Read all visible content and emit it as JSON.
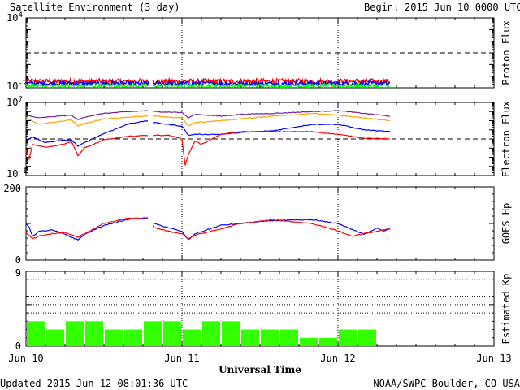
{
  "chart_data": {
    "type": "line",
    "title": "Satellite Environment (3 day)",
    "begin_label": "Begin:",
    "begin_value": "2015 Jun 10 0000 UTC",
    "xlabel": "Universal Time",
    "x_ticks": [
      "Jun 10",
      "Jun 11",
      "Jun 12",
      "Jun 13"
    ],
    "x_range_hours": [
      0,
      72
    ],
    "data_end_hour": 56,
    "footer_left": "Updated 2015 Jun 12 08:01:36 UTC",
    "footer_right": "NOAA/SWPC Boulder, CO USA",
    "panels": [
      {
        "name": "proton",
        "ylabel": "Proton Flux",
        "scale": "log",
        "ylim_exp": [
          -2,
          4
        ],
        "tick_labels": [
          {
            "base": "10",
            "exp": "4",
            "value": 4
          },
          {
            "base": "10",
            "exp": "-2",
            "value": -2
          }
        ],
        "threshold": 1,
        "gap_hours": [
          18.9,
          19.5
        ],
        "series": [
          {
            "color": "#ff0000",
            "level": -1.45,
            "noise": 0.22
          },
          {
            "color": "#0000ff",
            "level": -1.63,
            "noise": 0.18
          },
          {
            "color": "#00ff00",
            "level": -1.82,
            "noise": 0.14
          }
        ]
      },
      {
        "name": "electron",
        "ylabel": "Electron Flux",
        "scale": "log",
        "ylim_exp": [
          -1,
          7
        ],
        "tick_labels": [
          {
            "base": "10",
            "exp": "7",
            "value": 7
          },
          {
            "base": "10",
            "exp": "-1",
            "value": -1
          }
        ],
        "threshold": 3,
        "gap_hours": [
          18.9,
          19.5
        ],
        "series": [
          {
            "color": "#7020a0",
            "points": [
              [
                0,
                5.6
              ],
              [
                2,
                5.3
              ],
              [
                5,
                5.5
              ],
              [
                7,
                5.6
              ],
              [
                8,
                5.1
              ],
              [
                9,
                5.4
              ],
              [
                12,
                5.8
              ],
              [
                16,
                6.0
              ],
              [
                18.8,
                6.1
              ],
              [
                19.6,
                6.0
              ],
              [
                24,
                5.9
              ],
              [
                25,
                5.3
              ],
              [
                26,
                5.7
              ],
              [
                30,
                5.5
              ],
              [
                33,
                5.7
              ],
              [
                38,
                5.8
              ],
              [
                44,
                6.0
              ],
              [
                48,
                6.1
              ],
              [
                52,
                5.8
              ],
              [
                56,
                5.5
              ]
            ]
          },
          {
            "color": "#ffa000",
            "points": [
              [
                0,
                5.3
              ],
              [
                2,
                4.6
              ],
              [
                5,
                4.9
              ],
              [
                7,
                5.1
              ],
              [
                8,
                4.4
              ],
              [
                9,
                4.7
              ],
              [
                12,
                5.2
              ],
              [
                16,
                5.4
              ],
              [
                18.8,
                5.5
              ],
              [
                19.6,
                5.5
              ],
              [
                24,
                5.3
              ],
              [
                25,
                4.4
              ],
              [
                26,
                4.8
              ],
              [
                30,
                5.0
              ],
              [
                33,
                5.2
              ],
              [
                38,
                5.5
              ],
              [
                44,
                5.8
              ],
              [
                48,
                5.6
              ],
              [
                52,
                5.3
              ],
              [
                56,
                5.0
              ]
            ]
          },
          {
            "color": "#0000ff",
            "points": [
              [
                0,
                2.8
              ],
              [
                1,
                3.2
              ],
              [
                3,
                2.6
              ],
              [
                5,
                2.8
              ],
              [
                7,
                2.9
              ],
              [
                8,
                2.2
              ],
              [
                9,
                2.6
              ],
              [
                12,
                3.6
              ],
              [
                16,
                4.7
              ],
              [
                18.8,
                5.0
              ],
              [
                19.6,
                4.8
              ],
              [
                24,
                4.4
              ],
              [
                25,
                3.4
              ],
              [
                26,
                3.5
              ],
              [
                30,
                3.5
              ],
              [
                33,
                3.7
              ],
              [
                38,
                3.9
              ],
              [
                44,
                4.6
              ],
              [
                48,
                4.6
              ],
              [
                52,
                4.0
              ],
              [
                56,
                3.8
              ]
            ]
          },
          {
            "color": "#ff0000",
            "points": [
              [
                0,
                1.8
              ],
              [
                0.5,
                0.8
              ],
              [
                1,
                2.4
              ],
              [
                3,
                2.1
              ],
              [
                5,
                2.3
              ],
              [
                7,
                2.7
              ],
              [
                8,
                1.2
              ],
              [
                9,
                2.0
              ],
              [
                12,
                2.9
              ],
              [
                16,
                3.3
              ],
              [
                18.8,
                3.4
              ],
              [
                19.6,
                3.4
              ],
              [
                22,
                3.4
              ],
              [
                24,
                3.0
              ],
              [
                24.5,
                0.1
              ],
              [
                25,
                1.3
              ],
              [
                26,
                2.8
              ],
              [
                27,
                2.4
              ],
              [
                30,
                3.5
              ],
              [
                33,
                3.8
              ],
              [
                38,
                3.8
              ],
              [
                44,
                3.8
              ],
              [
                48,
                3.5
              ],
              [
                52,
                3.1
              ],
              [
                56,
                3.0
              ]
            ]
          }
        ]
      },
      {
        "name": "hp",
        "ylabel": "GOES Hp",
        "scale": "linear",
        "ylim": [
          0,
          200
        ],
        "tick_labels": [
          {
            "text": "200",
            "value": 200
          },
          {
            "text": "0",
            "value": 0
          }
        ],
        "gap_hours": [
          18.9,
          19.5
        ],
        "series": [
          {
            "color": "#0000ff",
            "points": [
              [
                0,
                100
              ],
              [
                0.5,
                90
              ],
              [
                1,
                65
              ],
              [
                2,
                78
              ],
              [
                4,
                82
              ],
              [
                6,
                70
              ],
              [
                8,
                55
              ],
              [
                9,
                70
              ],
              [
                12,
                95
              ],
              [
                16,
                112
              ],
              [
                18.8,
                115
              ],
              [
                19.6,
                100
              ],
              [
                22,
                88
              ],
              [
                24,
                78
              ],
              [
                25,
                55
              ],
              [
                26,
                72
              ],
              [
                30,
                95
              ],
              [
                33,
                100
              ],
              [
                38,
                108
              ],
              [
                44,
                110
              ],
              [
                48,
                100
              ],
              [
                52,
                70
              ],
              [
                54,
                88
              ],
              [
                55,
                80
              ],
              [
                56,
                85
              ]
            ]
          },
          {
            "color": "#ff0000",
            "points": [
              [
                0,
                75
              ],
              [
                1,
                58
              ],
              [
                2,
                65
              ],
              [
                4,
                72
              ],
              [
                6,
                75
              ],
              [
                8,
                62
              ],
              [
                9,
                72
              ],
              [
                12,
                100
              ],
              [
                16,
                115
              ],
              [
                18.8,
                112
              ],
              [
                19.6,
                90
              ],
              [
                22,
                78
              ],
              [
                24,
                72
              ],
              [
                25,
                58
              ],
              [
                26,
                68
              ],
              [
                30,
                85
              ],
              [
                33,
                100
              ],
              [
                38,
                110
              ],
              [
                44,
                100
              ],
              [
                48,
                80
              ],
              [
                50,
                65
              ],
              [
                52,
                72
              ],
              [
                56,
                85
              ]
            ]
          }
        ]
      },
      {
        "name": "kp",
        "ylabel": "Estimated Kp",
        "type": "bar",
        "scale": "linear",
        "ylim": [
          0,
          9
        ],
        "tick_labels": [
          {
            "text": "9",
            "value": 9
          },
          {
            "text": "0",
            "value": 0
          }
        ],
        "gridlines": [
          4,
          5,
          6,
          7,
          8,
          9
        ],
        "bar_color": "#33ff00",
        "bar_hours": 3,
        "values": [
          3,
          2,
          3,
          3,
          2,
          2,
          3,
          3,
          2,
          3,
          3,
          2,
          2,
          2,
          1,
          1,
          2,
          2
        ]
      }
    ]
  }
}
